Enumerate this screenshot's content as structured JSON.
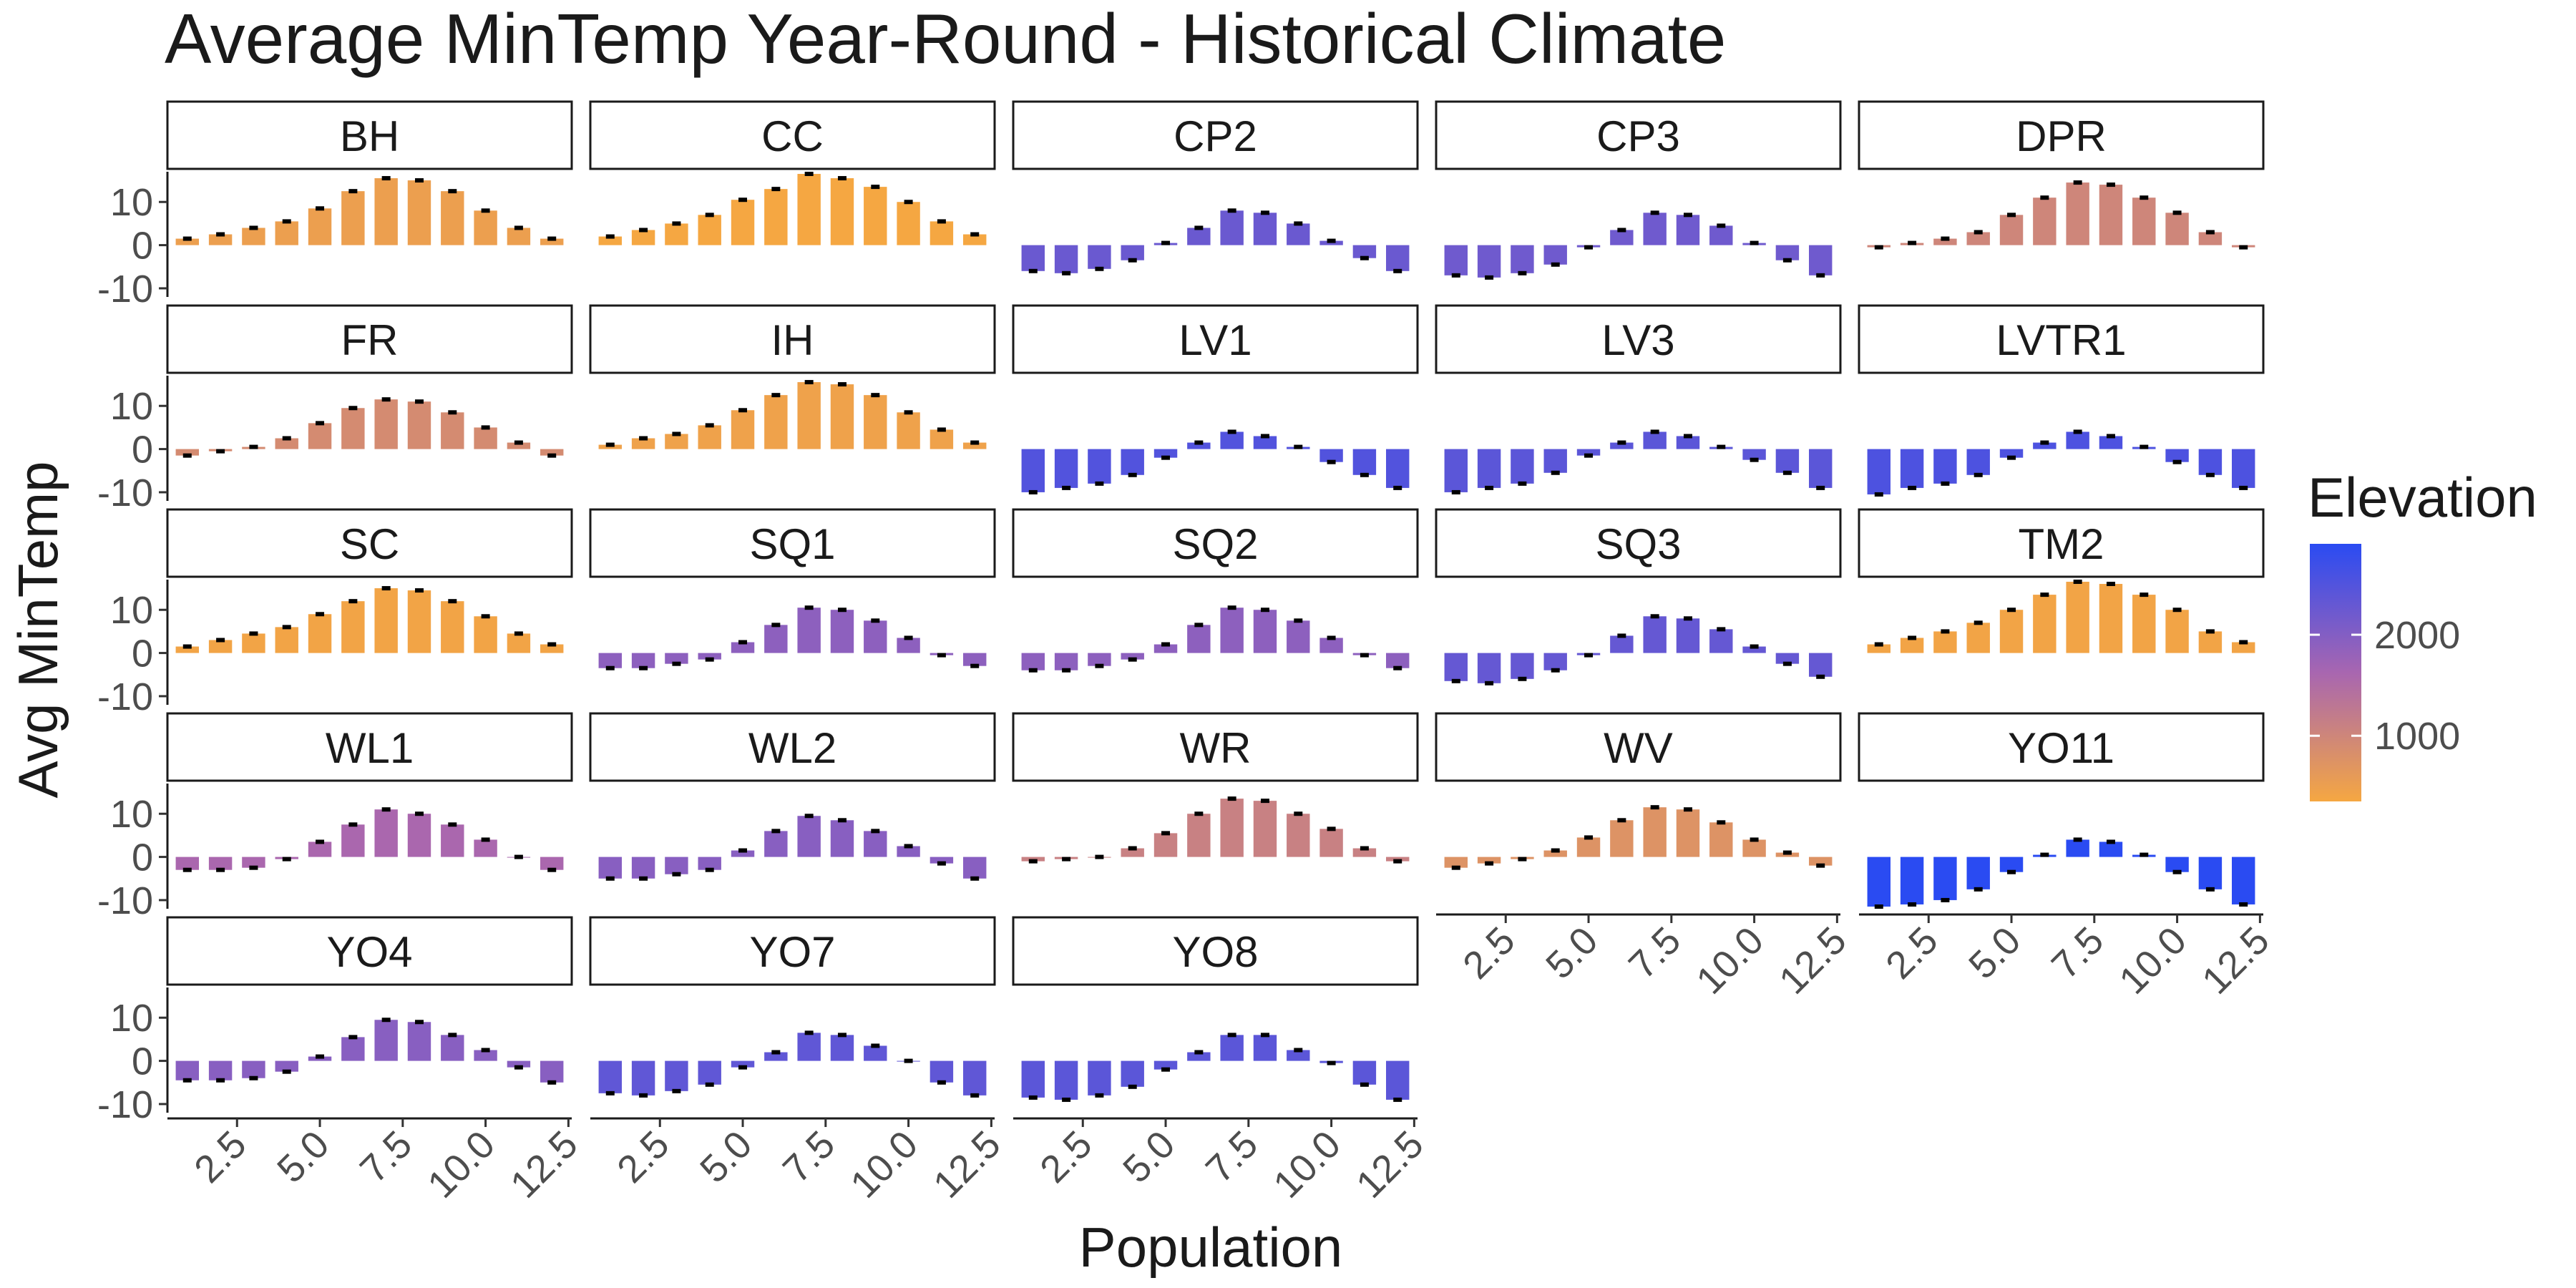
{
  "chart_data": {
    "type": "bar",
    "title": "Average MinTemp Year-Round - Historical Climate",
    "xlabel": "Population",
    "ylabel": "Avg MinTemp",
    "xlim": [
      0.4,
      12.6
    ],
    "ylim": [
      -12,
      17
    ],
    "x_ticks": [
      2.5,
      5.0,
      7.5,
      10.0,
      12.5
    ],
    "x_tick_labels": [
      "2.5",
      "5.0",
      "7.5",
      "10.0",
      "12.5"
    ],
    "y_ticks": [
      -10,
      0,
      10
    ],
    "y_tick_labels": [
      "-10",
      "0",
      "10"
    ],
    "x": [
      1,
      2,
      3,
      4,
      5,
      6,
      7,
      8,
      9,
      10,
      11,
      12
    ],
    "legend": {
      "title": "Elevation",
      "type": "colorbar",
      "placement": "right",
      "ticks": [
        1000,
        2000
      ],
      "tick_labels": [
        "1000",
        "2000"
      ],
      "range": [
        350,
        2900
      ],
      "color_low": "#F5A742",
      "color_high": "#2A4BF2"
    },
    "grid": false,
    "panels": [
      {
        "name": "BH",
        "elevation": 500,
        "values": [
          1.5,
          2.5,
          4,
          5.5,
          8.5,
          12.5,
          15.5,
          15,
          12.5,
          8,
          4,
          1.5
        ]
      },
      {
        "name": "CC",
        "elevation": 350,
        "values": [
          2,
          3.5,
          5,
          7,
          10.5,
          13,
          16.5,
          15.5,
          13.5,
          10,
          5.5,
          2.5
        ]
      },
      {
        "name": "CP2",
        "elevation": 2250,
        "values": [
          -6,
          -6.5,
          -5.5,
          -3.5,
          0.5,
          4,
          8,
          7.5,
          5,
          1,
          -3,
          -6
        ]
      },
      {
        "name": "CP3",
        "elevation": 2200,
        "values": [
          -7,
          -7.5,
          -6.5,
          -4.5,
          -0.5,
          3.5,
          7.5,
          7,
          4.5,
          0.5,
          -3.5,
          -7
        ]
      },
      {
        "name": "DPR",
        "elevation": 1000,
        "values": [
          -0.5,
          0.5,
          1.5,
          3,
          7,
          11,
          14.5,
          14,
          11,
          7.5,
          3,
          -0.5
        ]
      },
      {
        "name": "FR",
        "elevation": 900,
        "values": [
          -1.5,
          -0.5,
          0.5,
          2.5,
          6,
          9.5,
          11.5,
          11,
          8.5,
          5,
          1.5,
          -1.5
        ]
      },
      {
        "name": "IH",
        "elevation": 450,
        "values": [
          1,
          2.5,
          3.5,
          5.5,
          9,
          12.5,
          15.5,
          15,
          12.5,
          8.5,
          4.5,
          1.5
        ]
      },
      {
        "name": "LV1",
        "elevation": 2500,
        "values": [
          -10,
          -9,
          -8,
          -6,
          -2,
          1.5,
          4,
          3,
          0.5,
          -3,
          -6,
          -9
        ]
      },
      {
        "name": "LV3",
        "elevation": 2400,
        "values": [
          -10,
          -9,
          -8,
          -5.5,
          -1.5,
          1.5,
          4,
          3,
          0.5,
          -2.5,
          -5.5,
          -9
        ]
      },
      {
        "name": "LVTR1",
        "elevation": 2550,
        "values": [
          -10.5,
          -9,
          -8,
          -6,
          -2,
          1.5,
          4,
          3,
          0.5,
          -3,
          -6,
          -9
        ]
      },
      {
        "name": "SC",
        "elevation": 400,
        "values": [
          1.5,
          3,
          4.5,
          6,
          9,
          12,
          15,
          14.5,
          12,
          8.5,
          4.5,
          2
        ]
      },
      {
        "name": "SQ1",
        "elevation": 1900,
        "values": [
          -3.5,
          -3.5,
          -2.5,
          -1.5,
          2.5,
          6.5,
          10.5,
          10,
          7.5,
          3.5,
          -0.5,
          -3
        ]
      },
      {
        "name": "SQ2",
        "elevation": 1900,
        "values": [
          -4,
          -4,
          -3,
          -1.5,
          2,
          6.5,
          10.5,
          10,
          7.5,
          3.5,
          -0.5,
          -3.5
        ]
      },
      {
        "name": "SQ3",
        "elevation": 2300,
        "values": [
          -6.5,
          -7,
          -6,
          -4,
          -0.5,
          4,
          8.5,
          8,
          5.5,
          1.5,
          -2.5,
          -5.5
        ]
      },
      {
        "name": "TM2",
        "elevation": 400,
        "values": [
          2,
          3.5,
          5,
          7,
          10,
          13.5,
          16.5,
          16,
          13.5,
          10,
          5,
          2.5
        ]
      },
      {
        "name": "WL1",
        "elevation": 1600,
        "values": [
          -3,
          -3,
          -2.5,
          -0.5,
          3.5,
          7.5,
          11,
          10,
          7.5,
          4,
          0,
          -3
        ]
      },
      {
        "name": "WL2",
        "elevation": 1950,
        "values": [
          -5,
          -5,
          -4,
          -3,
          1.5,
          6,
          9.5,
          8.5,
          6,
          2.5,
          -1.5,
          -5
        ]
      },
      {
        "name": "WR",
        "elevation": 1100,
        "values": [
          -1,
          -0.5,
          0,
          2,
          5.5,
          10,
          13.5,
          13,
          10,
          6.5,
          2,
          -1
        ]
      },
      {
        "name": "WV",
        "elevation": 750,
        "values": [
          -2.5,
          -1.5,
          -0.5,
          1.5,
          4.5,
          8.5,
          11.5,
          11,
          8,
          4,
          1,
          -2
        ]
      },
      {
        "name": "YO11",
        "elevation": 2900,
        "values": [
          -11.5,
          -11,
          -10,
          -7.5,
          -3.5,
          0.5,
          4,
          3.5,
          0.5,
          -3.5,
          -7.5,
          -11
        ]
      },
      {
        "name": "YO4",
        "elevation": 1950,
        "values": [
          -4.5,
          -4.5,
          -4,
          -2.5,
          1,
          5.5,
          9.5,
          9,
          6,
          2.5,
          -1.5,
          -5
        ]
      },
      {
        "name": "YO7",
        "elevation": 2350,
        "values": [
          -7.5,
          -8,
          -7,
          -5.5,
          -1.5,
          2,
          6.5,
          6,
          3.5,
          0,
          -5,
          -8
        ]
      },
      {
        "name": "YO8",
        "elevation": 2400,
        "values": [
          -8.5,
          -9,
          -8,
          -6,
          -2,
          2,
          6,
          6,
          2.5,
          -0.5,
          -5.5,
          -9
        ]
      }
    ],
    "x_axis_panels": [
      "YO4",
      "YO7",
      "YO8",
      "WV",
      "YO11"
    ]
  }
}
